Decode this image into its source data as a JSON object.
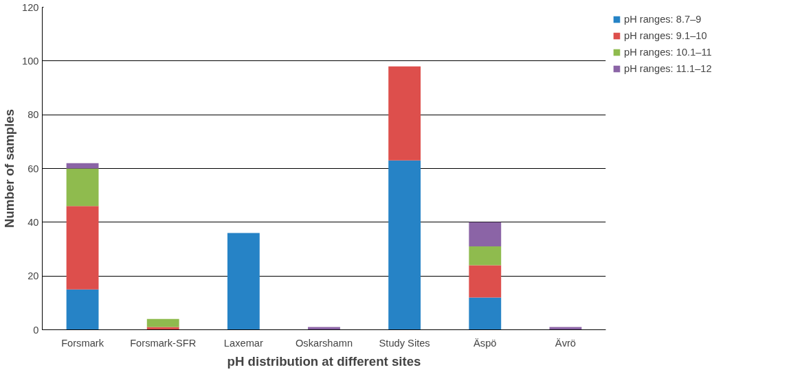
{
  "chart_data": {
    "type": "bar",
    "stacked": true,
    "xlabel": "pH distribution at different sites",
    "ylabel": "Number of samples",
    "categories": [
      "Forsmark",
      "Forsmark-SFR",
      "Laxemar",
      "Oskarshamn",
      "Study Sites",
      "Äspö",
      "Ävrö"
    ],
    "series": [
      {
        "name": "pH ranges: 8.7–9",
        "color": "#2683c6",
        "values": [
          15,
          0,
          36,
          0,
          63,
          12,
          0
        ]
      },
      {
        "name": "pH ranges: 9.1–10",
        "color": "#dd4f4c",
        "values": [
          31,
          1,
          0,
          0,
          35,
          12,
          0
        ]
      },
      {
        "name": "pH ranges: 10.1–11",
        "color": "#8fbb4e",
        "values": [
          14,
          3,
          0,
          0,
          0,
          7,
          0
        ]
      },
      {
        "name": "pH ranges: 11.1–12",
        "color": "#8b64a6",
        "values": [
          2,
          0,
          0,
          1,
          0,
          9,
          1
        ]
      }
    ],
    "ylim": [
      0,
      120
    ],
    "yticks": [
      0,
      20,
      40,
      60,
      80,
      100,
      120
    ],
    "grid": "y",
    "legend": "top right"
  }
}
